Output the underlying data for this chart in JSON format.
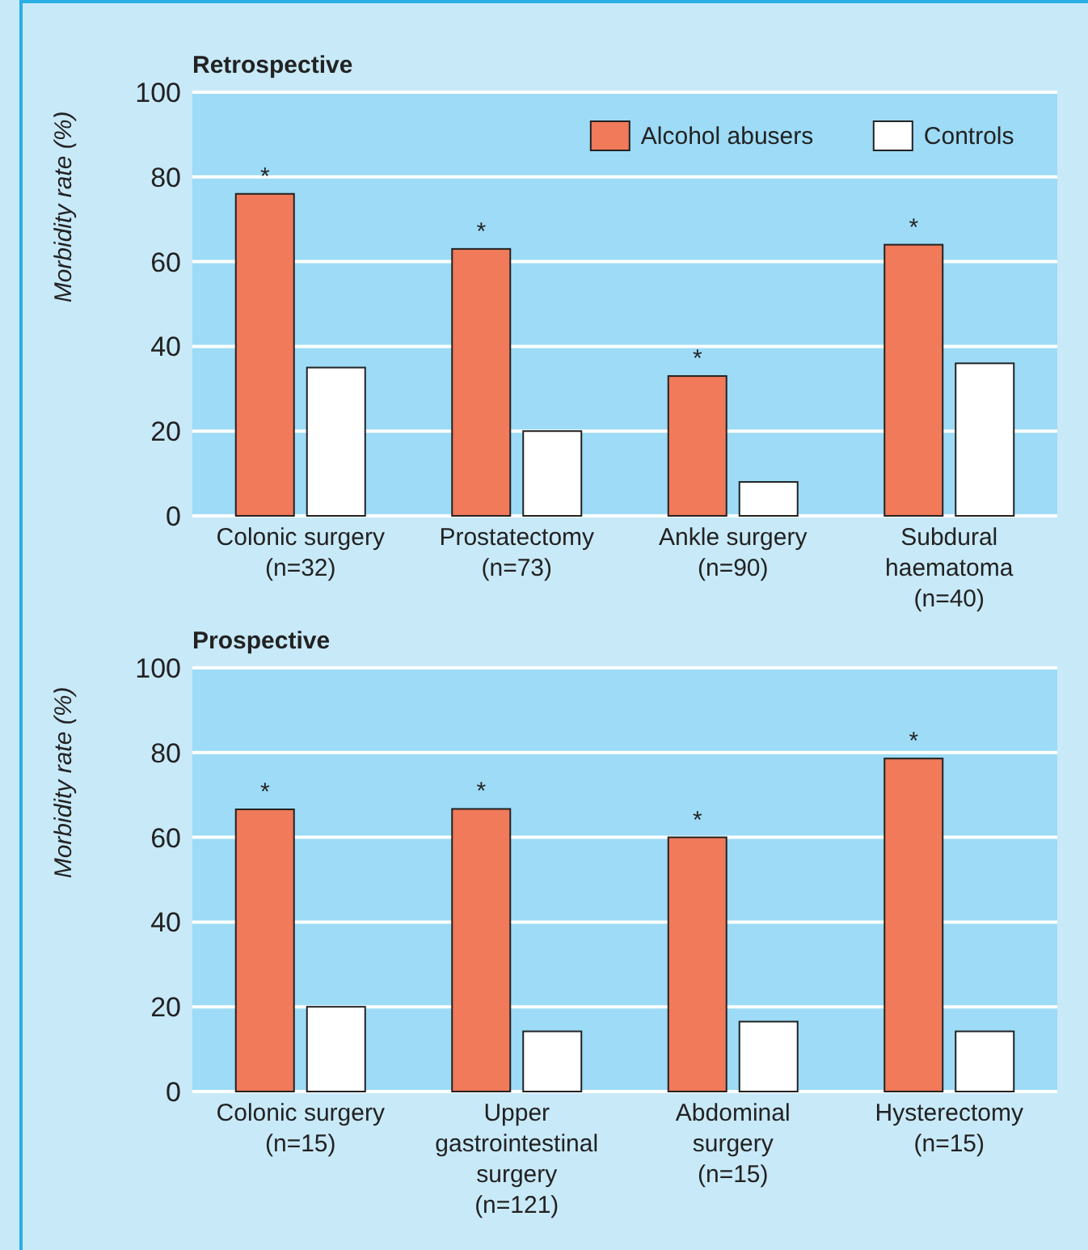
{
  "chart_data": [
    {
      "type": "bar",
      "title": "Retrospective",
      "ylabel": "Morbidity rate (%)",
      "categories": [
        "Colonic surgery\n(n=32)",
        "Prostatectomy\n(n=73)",
        "Ankle surgery\n(n=90)",
        "Subdural\nhaematoma\n(n=40)"
      ],
      "series": [
        {
          "name": "Alcohol abusers",
          "color": "#f07a5a",
          "values": [
            76,
            63,
            33,
            64
          ]
        },
        {
          "name": "Controls",
          "color": "#ffffff",
          "values": [
            35,
            20,
            8,
            36
          ]
        }
      ],
      "ylim": [
        0,
        100
      ],
      "yticks": [
        0,
        20,
        40,
        60,
        80,
        100
      ],
      "grid": "y",
      "legend": "top right",
      "annotations": [
        {
          "text": "*",
          "x": "Colonic surgery\n(n=32)",
          "y": 76
        },
        {
          "text": "*",
          "x": "Prostatectomy\n(n=73)",
          "y": 63
        },
        {
          "text": "*",
          "x": "Ankle surgery\n(n=90)",
          "y": 33
        },
        {
          "text": "*",
          "x": "Subdural\nhaematoma\n(n=40)",
          "y": 64
        }
      ]
    },
    {
      "type": "bar",
      "title": "Prospective",
      "ylabel": "Morbidity rate (%)",
      "categories": [
        "Colonic surgery\n(n=15)",
        "Upper\ngastrointestinal\nsurgery\n(n=121)",
        "Abdominal\nsurgery\n(n=15)",
        "Hysterectomy\n(n=15)"
      ],
      "series": [
        {
          "color": "#f07a5a",
          "values": [
            66.6,
            66.7,
            60,
            78.6
          ]
        },
        {
          "color": "#ffffff",
          "values": [
            20,
            14.2,
            16.5,
            14.2
          ]
        }
      ],
      "ylim": [
        0,
        100
      ],
      "yticks": [
        0,
        20,
        40,
        60,
        80,
        100
      ],
      "grid": "y",
      "legend": false,
      "annotations": [
        {
          "text": "*",
          "x": "Colonic surgery\n(n=15)",
          "y": 66.6
        },
        {
          "text": "*",
          "x": "Upper\ngastrointestinal\nsurgery\n(n=121)",
          "y": 66.7
        },
        {
          "text": "*",
          "x": "Abdominal\nsurgery\n(n=15)",
          "y": 60
        },
        {
          "text": "*",
          "x": "Hysterectomy\n(n=15)",
          "y": 78.6
        }
      ]
    }
  ]
}
